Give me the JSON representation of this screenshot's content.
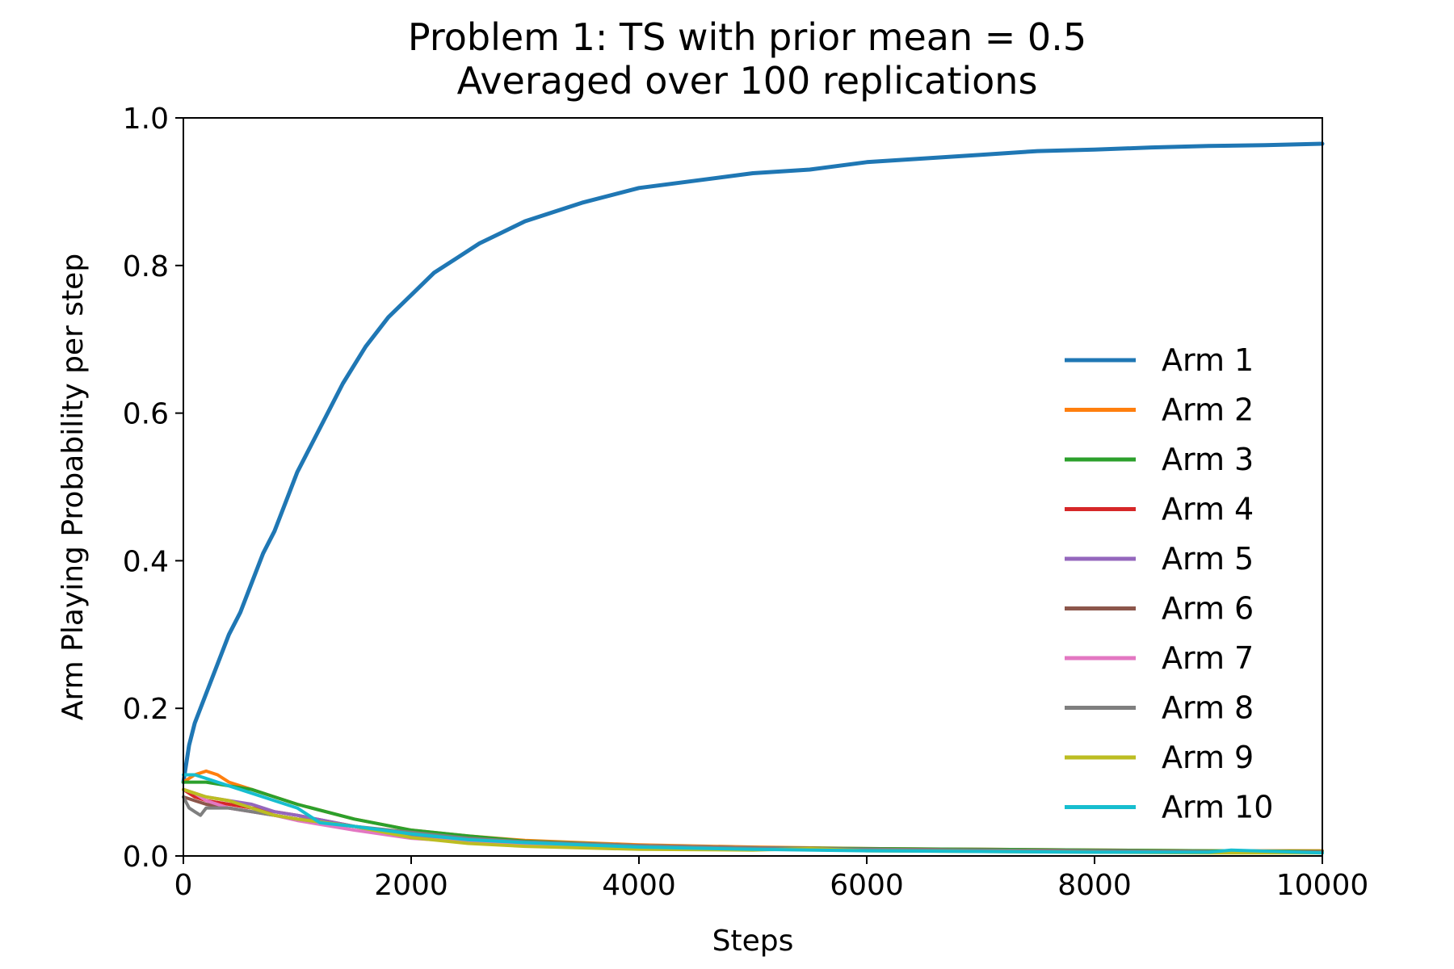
{
  "chart_data": {
    "type": "line",
    "title": "Problem 1: TS with prior mean = 0.5",
    "subtitle": "Averaged over 100 replications",
    "xlabel": "Steps",
    "ylabel": "Arm Playing Probability per step",
    "xlim": [
      0,
      10000
    ],
    "ylim": [
      0,
      1.0
    ],
    "xticks": [
      0,
      2000,
      4000,
      6000,
      8000,
      10000
    ],
    "xtick_labels": [
      "0",
      "2000",
      "4000",
      "6000",
      "8000",
      "10000"
    ],
    "yticks": [
      0,
      0.2,
      0.4,
      0.6,
      0.8,
      1.0
    ],
    "ytick_labels": [
      "0.0",
      "0.2",
      "0.4",
      "0.6",
      "0.8",
      "1.0"
    ],
    "grid": false,
    "legend_position": "center-right",
    "series": [
      {
        "name": "Arm 1",
        "color": "#1f77b4",
        "x": [
          0,
          50,
          100,
          200,
          300,
          400,
          500,
          600,
          700,
          800,
          900,
          1000,
          1200,
          1400,
          1600,
          1800,
          2000,
          2200,
          2400,
          2600,
          2800,
          3000,
          3500,
          4000,
          4500,
          5000,
          5500,
          6000,
          6500,
          7000,
          7500,
          8000,
          8500,
          9000,
          9500,
          10000
        ],
        "values": [
          0.1,
          0.15,
          0.18,
          0.22,
          0.26,
          0.3,
          0.33,
          0.37,
          0.41,
          0.44,
          0.48,
          0.52,
          0.58,
          0.64,
          0.69,
          0.73,
          0.76,
          0.79,
          0.81,
          0.83,
          0.845,
          0.86,
          0.885,
          0.905,
          0.915,
          0.925,
          0.93,
          0.94,
          0.945,
          0.95,
          0.955,
          0.957,
          0.96,
          0.962,
          0.963,
          0.965
        ]
      },
      {
        "name": "Arm 2",
        "color": "#ff7f0e",
        "x": [
          0,
          100,
          200,
          300,
          400,
          600,
          800,
          1000,
          1500,
          2000,
          2500,
          3000,
          4000,
          5000,
          6000,
          7000,
          8000,
          9000,
          10000
        ],
        "values": [
          0.1,
          0.11,
          0.115,
          0.11,
          0.1,
          0.09,
          0.08,
          0.07,
          0.05,
          0.035,
          0.027,
          0.021,
          0.015,
          0.012,
          0.01,
          0.009,
          0.008,
          0.007,
          0.007
        ]
      },
      {
        "name": "Arm 3",
        "color": "#2ca02c",
        "x": [
          0,
          100,
          200,
          400,
          600,
          800,
          1000,
          1500,
          2000,
          2500,
          3000,
          4000,
          5000,
          6000,
          7000,
          8000,
          9000,
          10000
        ],
        "values": [
          0.1,
          0.1,
          0.1,
          0.095,
          0.09,
          0.08,
          0.07,
          0.05,
          0.035,
          0.027,
          0.02,
          0.014,
          0.011,
          0.01,
          0.009,
          0.008,
          0.007,
          0.006
        ]
      },
      {
        "name": "Arm 4",
        "color": "#d62728",
        "x": [
          0,
          100,
          200,
          400,
          600,
          800,
          1000,
          1500,
          2000,
          2500,
          3000,
          4000,
          5000,
          6000,
          7000,
          8000,
          9000,
          10000
        ],
        "values": [
          0.09,
          0.08,
          0.075,
          0.07,
          0.065,
          0.06,
          0.055,
          0.04,
          0.025,
          0.02,
          0.017,
          0.013,
          0.01,
          0.009,
          0.008,
          0.007,
          0.006,
          0.005
        ]
      },
      {
        "name": "Arm 5",
        "color": "#9467bd",
        "x": [
          0,
          100,
          200,
          400,
          600,
          800,
          1000,
          1500,
          2000,
          2500,
          3000,
          4000,
          5000,
          6000,
          7000,
          8000,
          9000,
          10000
        ],
        "values": [
          0.09,
          0.085,
          0.08,
          0.075,
          0.07,
          0.06,
          0.055,
          0.04,
          0.028,
          0.021,
          0.017,
          0.012,
          0.01,
          0.008,
          0.007,
          0.006,
          0.005,
          0.005
        ]
      },
      {
        "name": "Arm 6",
        "color": "#8c564b",
        "x": [
          0,
          100,
          200,
          400,
          600,
          800,
          1000,
          1500,
          2000,
          2500,
          3000,
          4000,
          5000,
          6000,
          7000,
          8000,
          9000,
          10000
        ],
        "values": [
          0.08,
          0.075,
          0.07,
          0.065,
          0.06,
          0.055,
          0.05,
          0.04,
          0.03,
          0.024,
          0.019,
          0.014,
          0.011,
          0.009,
          0.008,
          0.007,
          0.006,
          0.005
        ]
      },
      {
        "name": "Arm 7",
        "color": "#e377c2",
        "x": [
          0,
          100,
          200,
          400,
          600,
          800,
          1000,
          1500,
          2000,
          2500,
          3000,
          4000,
          5000,
          6000,
          7000,
          8000,
          9000,
          10000
        ],
        "values": [
          0.09,
          0.085,
          0.075,
          0.065,
          0.06,
          0.055,
          0.048,
          0.035,
          0.024,
          0.019,
          0.015,
          0.011,
          0.009,
          0.008,
          0.007,
          0.006,
          0.005,
          0.005
        ]
      },
      {
        "name": "Arm 8",
        "color": "#7f7f7f",
        "x": [
          0,
          50,
          100,
          150,
          200,
          400,
          600,
          800,
          1000,
          1500,
          2000,
          2500,
          3000,
          4000,
          5000,
          6000,
          7000,
          8000,
          9000,
          10000
        ],
        "values": [
          0.08,
          0.065,
          0.06,
          0.055,
          0.065,
          0.065,
          0.06,
          0.055,
          0.05,
          0.04,
          0.032,
          0.024,
          0.019,
          0.014,
          0.011,
          0.009,
          0.008,
          0.007,
          0.006,
          0.005
        ]
      },
      {
        "name": "Arm 9",
        "color": "#bcbd22",
        "x": [
          0,
          100,
          200,
          400,
          600,
          800,
          1000,
          1500,
          2000,
          2500,
          3000,
          4000,
          5000,
          5500,
          6000,
          7000,
          8000,
          9000,
          10000
        ],
        "values": [
          0.09,
          0.085,
          0.08,
          0.075,
          0.065,
          0.055,
          0.05,
          0.04,
          0.025,
          0.017,
          0.013,
          0.009,
          0.008,
          0.01,
          0.007,
          0.006,
          0.005,
          0.004,
          0.004
        ]
      },
      {
        "name": "Arm 10",
        "color": "#17becf",
        "x": [
          0,
          100,
          200,
          300,
          400,
          600,
          800,
          1000,
          1200,
          1500,
          2000,
          2500,
          3000,
          4000,
          5000,
          6000,
          7000,
          8000,
          9000,
          9200,
          10000
        ],
        "values": [
          0.11,
          0.11,
          0.105,
          0.1,
          0.095,
          0.085,
          0.075,
          0.065,
          0.045,
          0.04,
          0.03,
          0.022,
          0.018,
          0.012,
          0.009,
          0.007,
          0.006,
          0.005,
          0.005,
          0.008,
          0.004
        ]
      }
    ]
  }
}
